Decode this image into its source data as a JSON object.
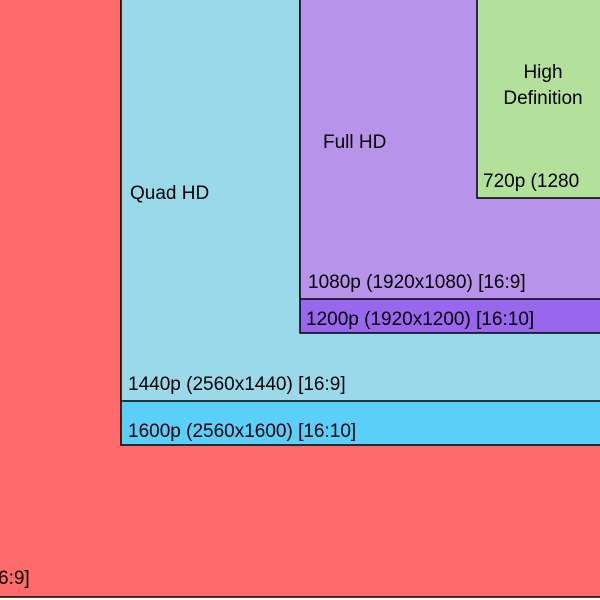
{
  "outer": {
    "label": "6:9]"
  },
  "quad_hd": {
    "name": "Quad HD",
    "label_1440p": "1440p (2560x1440) [16:9]",
    "label_1600p": "1600p (2560x1600) [16:10]"
  },
  "full_hd": {
    "name": "Full HD",
    "label_1080p": "1080p (1920x1080) [16:9]",
    "label_1200p": "1200p (1920x1200) [16:10]"
  },
  "hd": {
    "name_line1": "High",
    "name_line2": "Definition",
    "label_720p": "720p (1280"
  }
}
